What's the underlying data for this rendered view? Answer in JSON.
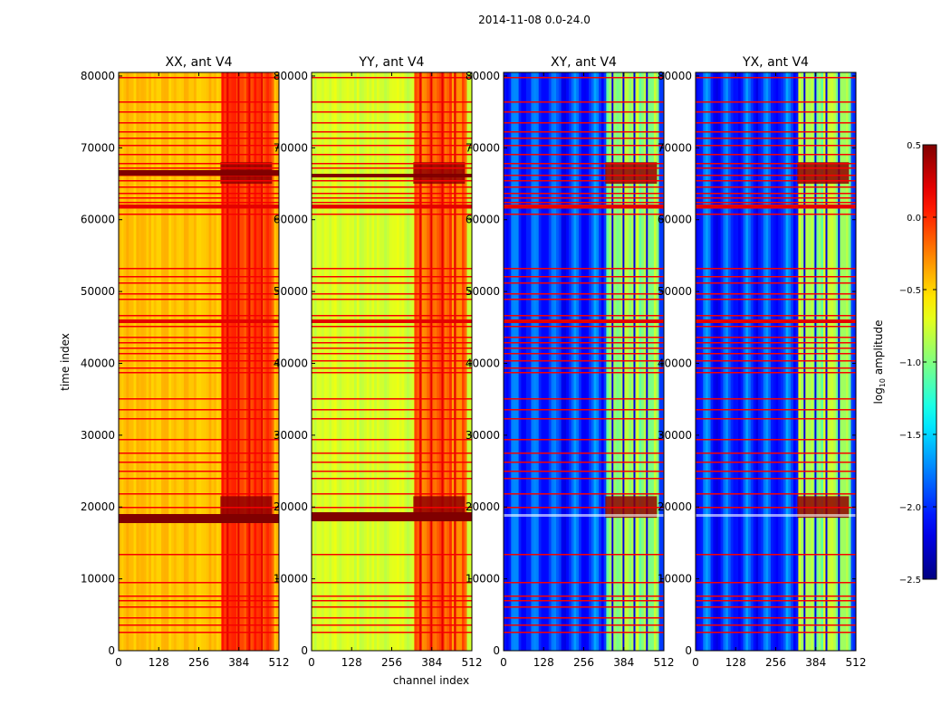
{
  "figure": {
    "suptitle": "2014-11-08 0.0-24.0",
    "ylabel": "time index",
    "xlabel": "channel index"
  },
  "colorbar": {
    "label": "log10 amplitude",
    "label_base": "log",
    "label_sub": "10",
    "label_rest": " amplitude",
    "vmin": -2.5,
    "vmax": 0.5,
    "ticks": [
      0.5,
      0.0,
      -0.5,
      -1.0,
      -1.5,
      -2.0,
      -2.5
    ],
    "tick_labels": [
      "0.5",
      "0.0",
      "−0.5",
      "−1.0",
      "−1.5",
      "−2.0",
      "−2.5"
    ],
    "colormap": "jet"
  },
  "chart_data": [
    {
      "type": "heatmap",
      "title": "XX, ant V4",
      "xlabel": "",
      "ylabel": "time index",
      "xlim": [
        0,
        512
      ],
      "ylim": [
        0,
        80500
      ],
      "xticks": [
        0,
        128,
        256,
        384,
        512
      ],
      "xtick_labels": [
        "0",
        "128",
        "256",
        "384",
        "512"
      ],
      "yticks": [
        0,
        10000,
        20000,
        30000,
        40000,
        50000,
        60000,
        70000,
        80000
      ],
      "ytick_labels": [
        "0",
        "10000",
        "20000",
        "30000",
        "40000",
        "50000",
        "60000",
        "70000",
        "80000"
      ],
      "base_log_amplitude": -0.45,
      "high_channel_region": [
        325,
        490
      ],
      "high_channel_log_amplitude": -0.05
    },
    {
      "type": "heatmap",
      "title": "YY, ant V4",
      "xlabel": "channel index",
      "ylabel": "",
      "xlim": [
        0,
        512
      ],
      "ylim": [
        0,
        80500
      ],
      "xticks": [
        0,
        128,
        256,
        384,
        512
      ],
      "xtick_labels": [
        "0",
        "128",
        "256",
        "384",
        "512"
      ],
      "yticks": [
        0,
        10000,
        20000,
        30000,
        40000,
        50000,
        60000,
        70000,
        80000
      ],
      "ytick_labels": [
        "0",
        "10000",
        "20000",
        "30000",
        "40000",
        "50000",
        "60000",
        "70000",
        "80000"
      ],
      "base_log_amplitude": -0.75,
      "high_channel_region": [
        325,
        490
      ],
      "high_channel_log_amplitude": -0.15
    },
    {
      "type": "heatmap",
      "title": "XY, ant V4",
      "xlabel": "",
      "ylabel": "",
      "xlim": [
        0,
        512
      ],
      "ylim": [
        0,
        80500
      ],
      "xticks": [
        0,
        128,
        256,
        384,
        512
      ],
      "xtick_labels": [
        "0",
        "128",
        "256",
        "384",
        "512"
      ],
      "yticks": [
        0,
        10000,
        20000,
        30000,
        40000,
        50000,
        60000,
        70000,
        80000
      ],
      "ytick_labels": [
        "0",
        "10000",
        "20000",
        "30000",
        "40000",
        "50000",
        "60000",
        "70000",
        "80000"
      ],
      "base_log_amplitude": -2.0,
      "high_channel_region": [
        325,
        490
      ],
      "high_channel_log_amplitude": -0.9
    },
    {
      "type": "heatmap",
      "title": "YX, ant V4",
      "xlabel": "",
      "ylabel": "",
      "xlim": [
        0,
        512
      ],
      "ylim": [
        0,
        80500
      ],
      "xticks": [
        0,
        128,
        256,
        384,
        512
      ],
      "xtick_labels": [
        "0",
        "128",
        "256",
        "384",
        "512"
      ],
      "yticks": [
        0,
        10000,
        20000,
        30000,
        40000,
        50000,
        60000,
        70000,
        80000
      ],
      "ytick_labels": [
        "0",
        "10000",
        "20000",
        "30000",
        "40000",
        "50000",
        "60000",
        "70000",
        "80000"
      ],
      "base_log_amplitude": -2.0,
      "high_channel_region": [
        325,
        490
      ],
      "high_channel_log_amplitude": -0.9
    }
  ]
}
